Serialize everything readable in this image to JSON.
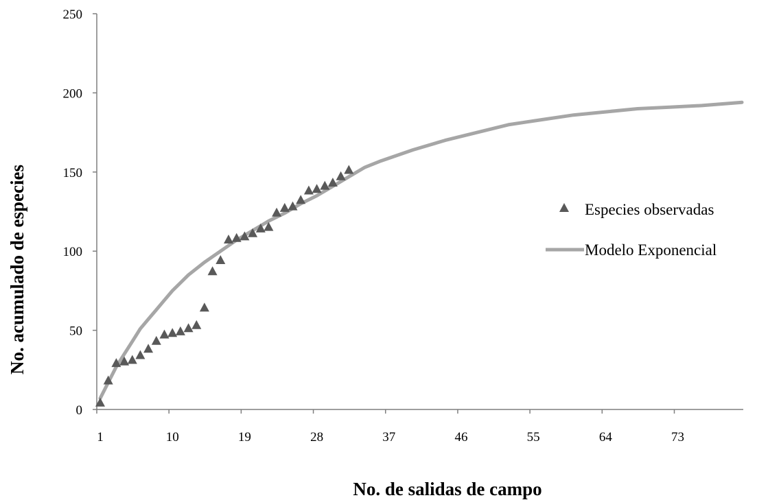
{
  "chart_data": {
    "type": "scatter",
    "xlabel": "No. de salidas de campo",
    "ylabel": "No. acumulado de especies",
    "xlim": [
      1,
      81
    ],
    "ylim": [
      0,
      250
    ],
    "x_ticks": [
      "1",
      "10",
      "19",
      "28",
      "37",
      "46",
      "55",
      "64",
      "73"
    ],
    "y_ticks": [
      "0",
      "50",
      "100",
      "150",
      "200",
      "250"
    ],
    "grid": false,
    "legend_position": "right",
    "series": [
      {
        "name": "Especies observadas",
        "kind": "scatter",
        "marker": "triangle",
        "color": "#595959",
        "points": [
          [
            1,
            4
          ],
          [
            2,
            18
          ],
          [
            3,
            29
          ],
          [
            4,
            30
          ],
          [
            5,
            31
          ],
          [
            6,
            34
          ],
          [
            7,
            38
          ],
          [
            8,
            43
          ],
          [
            9,
            47
          ],
          [
            10,
            48
          ],
          [
            11,
            49
          ],
          [
            12,
            51
          ],
          [
            13,
            53
          ],
          [
            14,
            64
          ],
          [
            15,
            87
          ],
          [
            16,
            94
          ],
          [
            17,
            107
          ],
          [
            18,
            108
          ],
          [
            19,
            109
          ],
          [
            20,
            111
          ],
          [
            21,
            114
          ],
          [
            22,
            115
          ],
          [
            23,
            124
          ],
          [
            24,
            127
          ],
          [
            25,
            128
          ],
          [
            26,
            132
          ],
          [
            27,
            138
          ],
          [
            28,
            139
          ],
          [
            29,
            141
          ],
          [
            30,
            143
          ],
          [
            31,
            147
          ],
          [
            32,
            151
          ]
        ]
      },
      {
        "name": "Modelo Exponencial",
        "kind": "line",
        "color": "#a6a6a6",
        "points": [
          [
            1,
            7
          ],
          [
            2,
            17
          ],
          [
            3,
            27
          ],
          [
            4,
            35
          ],
          [
            5,
            43
          ],
          [
            6,
            51
          ],
          [
            7,
            57
          ],
          [
            8,
            63
          ],
          [
            9,
            69
          ],
          [
            10,
            75
          ],
          [
            11,
            80
          ],
          [
            12,
            85
          ],
          [
            14,
            93
          ],
          [
            16,
            100
          ],
          [
            18,
            107
          ],
          [
            20,
            113
          ],
          [
            22,
            119
          ],
          [
            24,
            124
          ],
          [
            26,
            130
          ],
          [
            28,
            135
          ],
          [
            30,
            141
          ],
          [
            32,
            147
          ],
          [
            34,
            153
          ],
          [
            36,
            157
          ],
          [
            40,
            164
          ],
          [
            44,
            170
          ],
          [
            48,
            175
          ],
          [
            52,
            180
          ],
          [
            56,
            183
          ],
          [
            60,
            186
          ],
          [
            64,
            188
          ],
          [
            68,
            190
          ],
          [
            72,
            191
          ],
          [
            76,
            192
          ],
          [
            81,
            194
          ]
        ]
      }
    ]
  }
}
